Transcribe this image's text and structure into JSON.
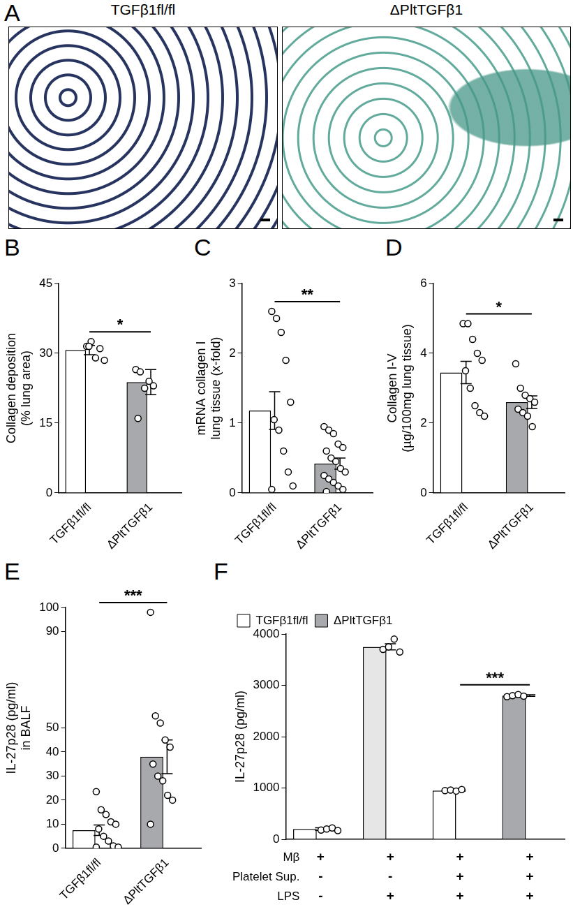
{
  "panel_a": {
    "label": "A",
    "images": [
      {
        "title": "TGFβ1fl/fl"
      },
      {
        "title": "ΔPltTGFβ1"
      }
    ]
  },
  "chart_data": [
    {
      "panel_label": "B",
      "type": "bar",
      "categories": [
        "TGFβ1fl/fl",
        "ΔPltTGFβ1"
      ],
      "colors": [
        "#ffffff",
        "#a7a9ac"
      ],
      "values": [
        30.7,
        23.8
      ],
      "errors": [
        1.0,
        2.7
      ],
      "points": [
        [
          31.5,
          32.5,
          29,
          31,
          28.5,
          31.5
        ],
        [
          26.5,
          26,
          22.5,
          24,
          23,
          16
        ]
      ],
      "y_label": [
        "Collagen deposition",
        "(% lung area)"
      ],
      "ylim": [
        0,
        45
      ],
      "yticks": [
        0,
        15,
        30,
        45
      ],
      "grid": false,
      "significance": [
        {
          "text": "*",
          "between": [
            0,
            1
          ]
        }
      ]
    },
    {
      "panel_label": "C",
      "type": "bar",
      "categories": [
        "TGFβ1fl/fl",
        "ΔPltTGFβ1"
      ],
      "colors": [
        "#ffffff",
        "#a7a9ac"
      ],
      "values": [
        1.18,
        0.42
      ],
      "errors": [
        0.27,
        0.08
      ],
      "points": [
        [
          2.6,
          2.5,
          2.3,
          1.9,
          1.3,
          1.05,
          0.9,
          0.6,
          0.3,
          0.1,
          0.05
        ],
        [
          0.95,
          0.9,
          0.85,
          0.7,
          0.65,
          0.6,
          0.5,
          0.45,
          0.35,
          0.3,
          0.25,
          0.2,
          0.15,
          0.1,
          0.05,
          0.02
        ]
      ],
      "y_label": [
        "mRNA collagen I",
        "lung tissue (x-fold)"
      ],
      "ylim": [
        0,
        3
      ],
      "yticks": [
        0,
        1,
        2,
        3
      ],
      "grid": false,
      "significance": [
        {
          "text": "**",
          "between": [
            0,
            1
          ]
        }
      ]
    },
    {
      "panel_label": "D",
      "type": "bar",
      "categories": [
        "TGFβ1fl/fl",
        "ΔPltTGFβ1"
      ],
      "colors": [
        "#ffffff",
        "#a7a9ac"
      ],
      "values": [
        3.45,
        2.6
      ],
      "errors": [
        0.32,
        0.18
      ],
      "points": [
        [
          4.85,
          4.85,
          4.4,
          4.0,
          3.8,
          3.5,
          3.0,
          2.5,
          2.3,
          2.2
        ],
        [
          3.7,
          3.0,
          2.8,
          2.7,
          2.6,
          2.4,
          2.3,
          2.2,
          1.9
        ]
      ],
      "y_label": [
        "Collagen I-V",
        "(µg/100mg lung tissue)"
      ],
      "ylim": [
        0,
        6
      ],
      "yticks": [
        0,
        2,
        4,
        6
      ],
      "grid": false,
      "significance": [
        {
          "text": "*",
          "between": [
            0,
            1
          ]
        }
      ]
    },
    {
      "panel_label": "E",
      "type": "bar",
      "categories": [
        "TGFβ1fl/fl",
        "ΔPltTGFβ1"
      ],
      "colors": [
        "#ffffff",
        "#a7a9ac"
      ],
      "values": [
        7.5,
        38
      ],
      "errors": [
        2.2,
        7
      ],
      "points": [
        [
          23.5,
          16,
          14,
          11,
          10,
          8,
          5,
          3,
          1,
          0.5,
          0.5
        ],
        [
          98,
          55,
          52,
          45,
          42,
          35,
          30,
          28,
          22,
          20,
          10
        ]
      ],
      "y_label": [
        "IL-27p28 (pg/ml)",
        "in BALF"
      ],
      "ylim": [
        0,
        100
      ],
      "yticks": [
        0,
        10,
        20,
        30,
        40,
        50,
        90,
        100
      ],
      "grid": false,
      "significance": [
        {
          "text": "***",
          "between": [
            0,
            1
          ]
        }
      ]
    },
    {
      "panel_label": "F",
      "type": "bar",
      "categories": [
        null,
        null,
        null,
        null
      ],
      "colors": [
        "#ffffff",
        "#e6e6e6",
        "#ffffff",
        "#a7a9ac"
      ],
      "values": [
        200,
        3750,
        950,
        2800
      ],
      "errors": [
        25,
        60,
        12,
        15
      ],
      "points": [
        [
          180,
          200,
          220,
          170
        ],
        [
          3700,
          3750,
          3900,
          3650
        ],
        [
          950,
          960,
          940,
          970
        ],
        [
          2780,
          2800,
          2820,
          2790
        ]
      ],
      "y_label": "IL-27p28 (pg/ml)",
      "ylim": [
        0,
        4000
      ],
      "yticks": [
        0,
        1000,
        2000,
        3000,
        4000
      ],
      "grid": false,
      "legend": "upper left",
      "legend_items": [
        {
          "name": "TGFβ1fl/fl",
          "color": "#ffffff"
        },
        {
          "name": "ΔPltTGFβ1",
          "color": "#a7a9ac"
        }
      ],
      "condition_rows": [
        {
          "label": "Mβ",
          "values": [
            "+",
            "+",
            "+",
            "+"
          ]
        },
        {
          "label": "Platelet Sup.",
          "values": [
            "-",
            "-",
            "+",
            "+"
          ]
        },
        {
          "label": "LPS",
          "values": [
            "-",
            "+",
            "+",
            "+"
          ]
        }
      ],
      "significance": [
        {
          "text": "***",
          "between": [
            2,
            3
          ]
        }
      ]
    }
  ]
}
